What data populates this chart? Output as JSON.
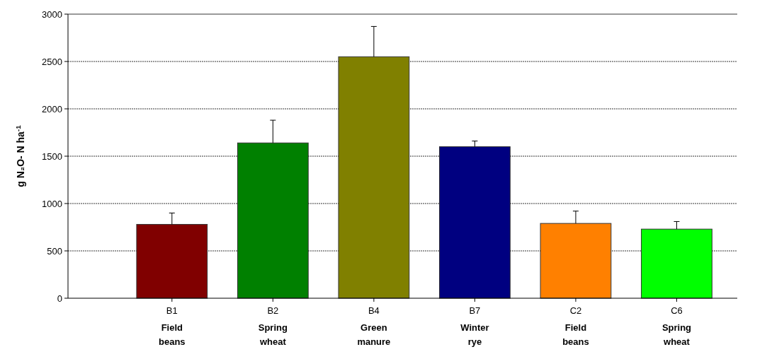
{
  "chart_data": {
    "type": "bar",
    "ylabel": "g N₂O- N ha$^{-1}$",
    "categories": [
      "B1\nField\nbeans",
      "B2\nSpring\nwheat",
      "B4\nGreen\nmanure",
      "B7\nWinter\nrye",
      "C2\nField\nbeans",
      "C6\nSpring\nwheat"
    ],
    "values": [
      780,
      1640,
      2550,
      1600,
      790,
      730
    ],
    "errors": [
      [
        780,
        900
      ],
      [
        1640,
        1880
      ],
      [
        2550,
        2870
      ],
      [
        1600,
        1660
      ],
      [
        790,
        920
      ],
      [
        730,
        810
      ]
    ],
    "colors": [
      "#800000",
      "#008000",
      "#808000",
      "#000080",
      "#ff8000",
      "#00ff00"
    ],
    "ylim": [
      0,
      3000
    ],
    "yticks": [
      0,
      500,
      1000,
      1500,
      2000,
      2500,
      3000
    ],
    "grid": "y"
  }
}
